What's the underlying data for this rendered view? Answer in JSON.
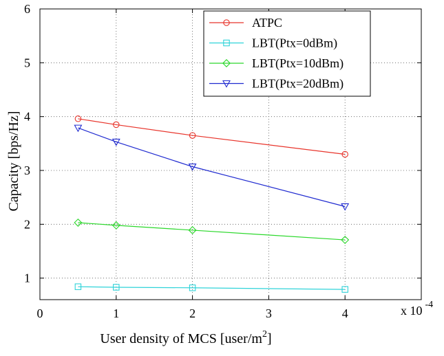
{
  "chart_data": {
    "type": "line",
    "title": "",
    "xlabel": "User density of MCS [user/m²]",
    "ylabel": "Capacity [bps/Hz]",
    "x_multiplier": "x 10",
    "x_multiplier_exponent": "-4",
    "xlim": [
      0,
      5
    ],
    "ylim": [
      0.6,
      6
    ],
    "xticks": [
      0,
      1,
      2,
      3,
      4
    ],
    "yticks": [
      1,
      2,
      3,
      4,
      5,
      6
    ],
    "x_tick_labels": [
      "0",
      "1",
      "2",
      "3",
      "4"
    ],
    "y_tick_labels": [
      "1",
      "2",
      "3",
      "4",
      "5",
      "6"
    ],
    "grid": true,
    "grid_style": "dotted",
    "legend_position": "top-right",
    "series": [
      {
        "name": "ATPC",
        "color": "#e8332a",
        "marker": "circle",
        "x": [
          0.5,
          1,
          2,
          4
        ],
        "y": [
          3.96,
          3.85,
          3.65,
          3.3
        ]
      },
      {
        "name": "LBT(Ptx=0dBm)",
        "color": "#2ed3d9",
        "marker": "square",
        "x": [
          0.5,
          1,
          2,
          4
        ],
        "y": [
          0.84,
          0.83,
          0.82,
          0.79
        ]
      },
      {
        "name": "LBT(Ptx=10dBm)",
        "color": "#2ad82a",
        "marker": "diamond",
        "x": [
          0.5,
          1,
          2,
          4
        ],
        "y": [
          2.03,
          1.98,
          1.89,
          1.71
        ]
      },
      {
        "name": "LBT(Ptx=20dBm)",
        "color": "#1f2ad0",
        "marker": "triangle-down",
        "x": [
          0.5,
          1,
          2,
          4
        ],
        "y": [
          3.79,
          3.53,
          3.07,
          2.33
        ]
      }
    ]
  }
}
